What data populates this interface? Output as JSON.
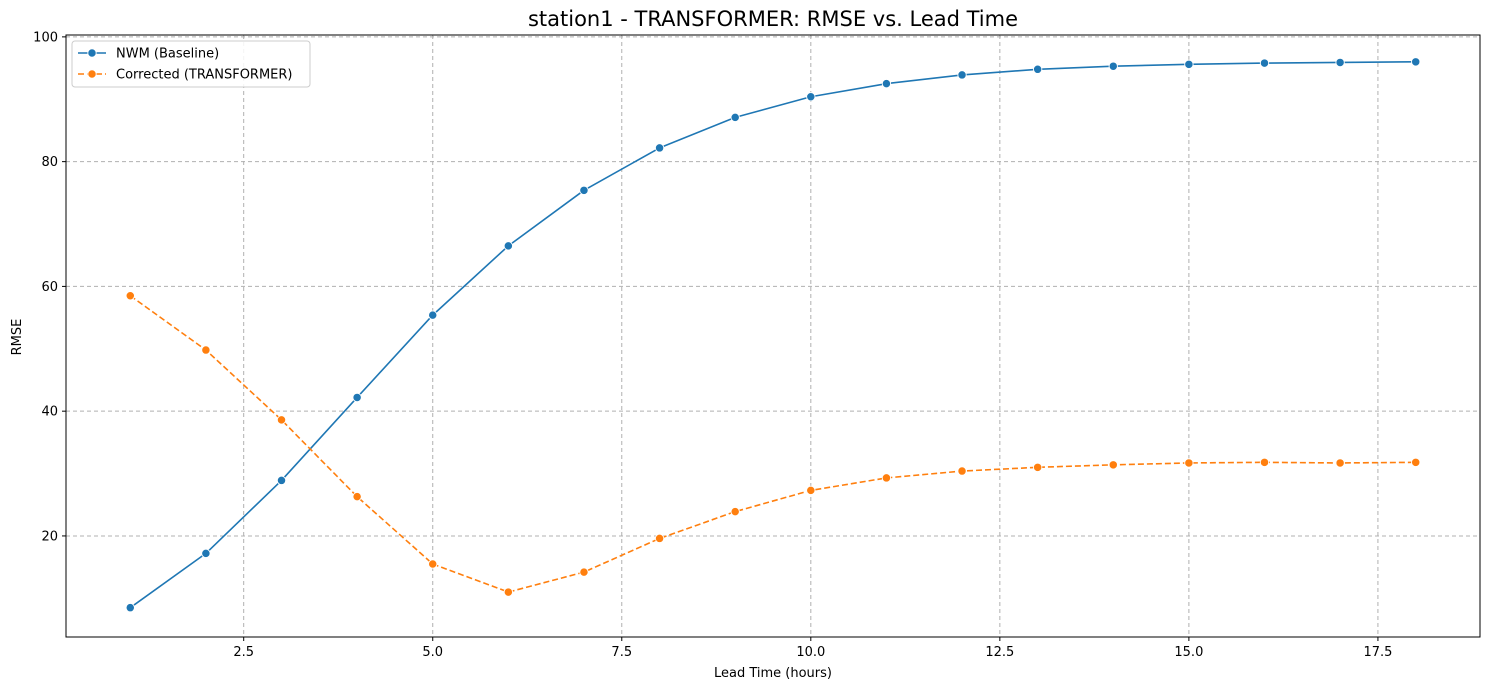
{
  "chart_data": {
    "type": "line",
    "title": "station1 - TRANSFORMER: RMSE vs. Lead Time",
    "xlabel": "Lead Time (hours)",
    "ylabel": "RMSE",
    "xlim": [
      0.15,
      18.85
    ],
    "ylim": [
      3.8,
      100.3
    ],
    "xticks": [
      2.5,
      5.0,
      7.5,
      10.0,
      12.5,
      15.0,
      17.5
    ],
    "yticks": [
      20,
      40,
      60,
      80,
      100
    ],
    "grid": true,
    "legend_position": "top-left",
    "x": [
      1,
      2,
      3,
      4,
      5,
      6,
      7,
      8,
      9,
      10,
      11,
      12,
      13,
      14,
      15,
      16,
      17,
      18
    ],
    "series": [
      {
        "name": "NWM (Baseline)",
        "color": "#1f77b4",
        "style": "solid",
        "values": [
          8.5,
          17.2,
          28.9,
          42.2,
          55.4,
          66.5,
          75.4,
          82.2,
          87.1,
          90.4,
          92.5,
          93.9,
          94.8,
          95.3,
          95.6,
          95.8,
          95.9,
          96.0
        ]
      },
      {
        "name": "Corrected (TRANSFORMER)",
        "color": "#ff7f0e",
        "style": "dashed",
        "values": [
          58.5,
          49.8,
          38.6,
          26.3,
          15.5,
          11.0,
          14.2,
          19.6,
          23.9,
          27.3,
          29.3,
          30.4,
          31.0,
          31.4,
          31.7,
          31.8,
          31.7,
          31.8
        ]
      }
    ]
  }
}
